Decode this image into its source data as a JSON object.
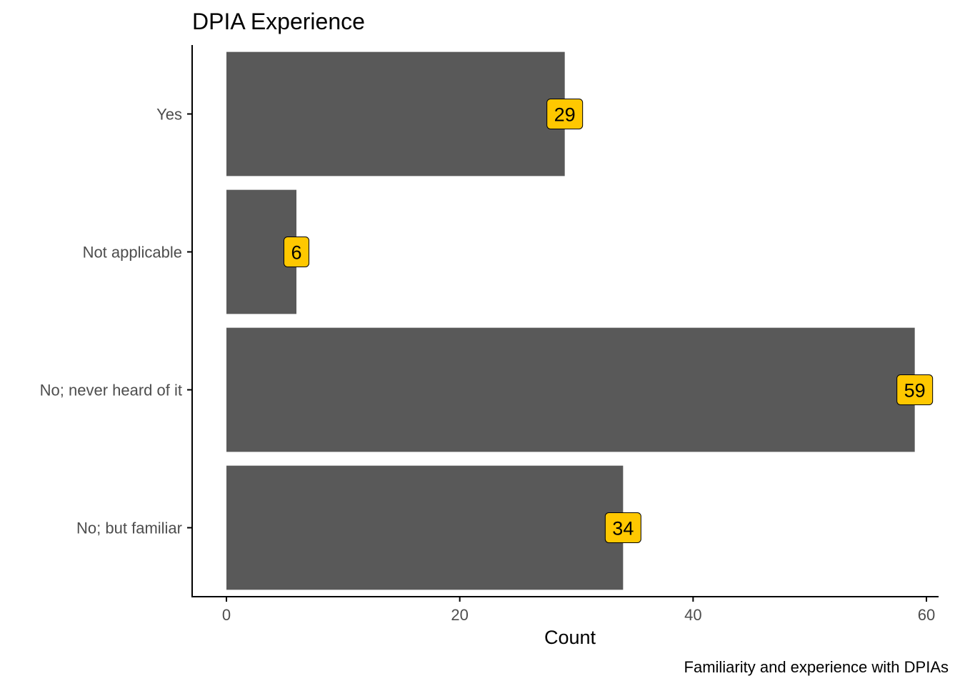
{
  "chart_data": {
    "type": "bar",
    "orientation": "horizontal",
    "title": "DPIA Experience",
    "xlabel": "Count",
    "ylabel": "",
    "caption": "Familiarity and experience with DPIAs",
    "categories": [
      "Yes",
      "Not applicable",
      "No; never heard of it",
      "No; but familiar"
    ],
    "values": [
      29,
      6,
      59,
      34
    ],
    "data_labels": [
      "29",
      "6",
      "59",
      "34"
    ],
    "xlim": [
      0,
      61.6
    ],
    "xticks": [
      0,
      20,
      40,
      60
    ],
    "xtick_labels": [
      "0",
      "20",
      "40",
      "60"
    ],
    "grid": false,
    "legend": "none",
    "bar_color": "#595959",
    "label_fill": "#FFC800",
    "axis_color": "#000000",
    "tick_label_color": "#4D4D4D"
  }
}
